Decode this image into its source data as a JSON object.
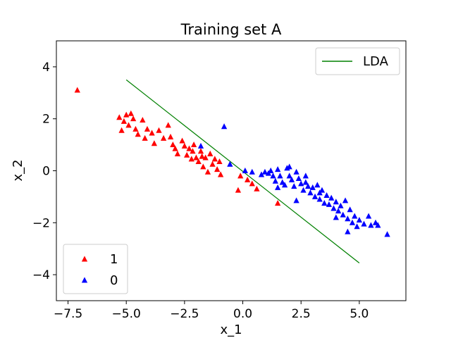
{
  "chart_data": {
    "type": "scatter",
    "title": "Training set A",
    "xlabel": "x_1",
    "ylabel": "x_2",
    "xlim": [
      -8.0,
      7.0
    ],
    "ylim": [
      -5.0,
      5.0
    ],
    "xticks": [
      -7.5,
      -5.0,
      -2.5,
      0.0,
      2.5,
      5.0
    ],
    "xtick_labels": [
      "−7.5",
      "−5.0",
      "−2.5",
      "0.0",
      "2.5",
      "5.0"
    ],
    "yticks": [
      -4,
      -2,
      0,
      2,
      4
    ],
    "ytick_labels": [
      "−4",
      "−2",
      "0",
      "2",
      "4"
    ],
    "grid": false,
    "series": [
      {
        "name": "1",
        "marker": "triangle",
        "color": "#ff0000",
        "points": [
          [
            -7.1,
            3.1
          ],
          [
            -5.3,
            2.05
          ],
          [
            -5.0,
            2.15
          ],
          [
            -4.8,
            2.2
          ],
          [
            -4.7,
            2.0
          ],
          [
            -5.1,
            1.9
          ],
          [
            -4.9,
            1.75
          ],
          [
            -5.2,
            1.55
          ],
          [
            -4.6,
            1.6
          ],
          [
            -4.5,
            1.4
          ],
          [
            -4.3,
            1.95
          ],
          [
            -4.1,
            1.6
          ],
          [
            -4.2,
            1.25
          ],
          [
            -3.9,
            1.45
          ],
          [
            -3.8,
            1.05
          ],
          [
            -3.6,
            1.55
          ],
          [
            -3.4,
            1.25
          ],
          [
            -3.2,
            1.75
          ],
          [
            -3.1,
            1.3
          ],
          [
            -3.0,
            1.0
          ],
          [
            -2.9,
            0.85
          ],
          [
            -2.8,
            0.65
          ],
          [
            -2.6,
            1.15
          ],
          [
            -2.5,
            0.95
          ],
          [
            -2.4,
            0.6
          ],
          [
            -2.3,
            0.85
          ],
          [
            -2.2,
            0.45
          ],
          [
            -2.1,
            1.0
          ],
          [
            -2.0,
            0.5
          ],
          [
            -2.15,
            0.75
          ],
          [
            -1.9,
            0.35
          ],
          [
            -1.8,
            0.75
          ],
          [
            -1.75,
            0.55
          ],
          [
            -1.7,
            0.15
          ],
          [
            -1.6,
            0.5
          ],
          [
            -1.5,
            -0.05
          ],
          [
            -1.4,
            0.65
          ],
          [
            -1.3,
            0.25
          ],
          [
            -1.2,
            0.45
          ],
          [
            -1.1,
            0.05
          ],
          [
            -1.0,
            0.35
          ],
          [
            -0.95,
            -0.15
          ],
          [
            -0.2,
            -0.75
          ],
          [
            -0.1,
            -0.2
          ],
          [
            0.2,
            -0.35
          ],
          [
            0.4,
            -0.5
          ],
          [
            0.6,
            -0.7
          ],
          [
            1.5,
            -1.25
          ]
        ]
      },
      {
        "name": "0",
        "marker": "triangle",
        "color": "#0000ff",
        "points": [
          [
            -1.8,
            0.95
          ],
          [
            -0.8,
            1.7
          ],
          [
            -0.55,
            0.25
          ],
          [
            0.1,
            0.0
          ],
          [
            0.4,
            -0.05
          ],
          [
            0.8,
            -0.15
          ],
          [
            0.95,
            -0.05
          ],
          [
            1.1,
            -0.1
          ],
          [
            1.2,
            0.0
          ],
          [
            1.3,
            -0.2
          ],
          [
            1.4,
            -0.4
          ],
          [
            1.5,
            0.05
          ],
          [
            1.6,
            -0.2
          ],
          [
            1.7,
            -0.45
          ],
          [
            1.8,
            -0.55
          ],
          [
            1.9,
            0.1
          ],
          [
            2.0,
            -0.2
          ],
          [
            2.1,
            -0.35
          ],
          [
            2.2,
            -0.6
          ],
          [
            2.3,
            -0.05
          ],
          [
            2.4,
            -0.3
          ],
          [
            2.5,
            -0.5
          ],
          [
            2.6,
            -0.75
          ],
          [
            2.7,
            -0.45
          ],
          [
            2.8,
            -0.6
          ],
          [
            2.9,
            -0.85
          ],
          [
            3.0,
            -0.65
          ],
          [
            3.1,
            -1.0
          ],
          [
            3.2,
            -0.55
          ],
          [
            3.3,
            -1.1
          ],
          [
            3.4,
            -0.75
          ],
          [
            3.5,
            -1.25
          ],
          [
            3.6,
            -0.95
          ],
          [
            3.7,
            -1.3
          ],
          [
            3.8,
            -1.05
          ],
          [
            3.9,
            -1.45
          ],
          [
            4.0,
            -1.2
          ],
          [
            4.1,
            -1.55
          ],
          [
            4.2,
            -1.35
          ],
          [
            4.3,
            -1.7
          ],
          [
            4.4,
            -1.15
          ],
          [
            4.5,
            -1.85
          ],
          [
            4.6,
            -1.5
          ],
          [
            4.7,
            -2.0
          ],
          [
            4.8,
            -1.75
          ],
          [
            4.9,
            -2.15
          ],
          [
            5.0,
            -1.9
          ],
          [
            5.2,
            -2.05
          ],
          [
            5.4,
            -1.75
          ],
          [
            5.5,
            -2.1
          ],
          [
            5.7,
            -2.0
          ],
          [
            5.8,
            -2.1
          ],
          [
            6.2,
            -2.45
          ],
          [
            4.5,
            -2.35
          ],
          [
            2.3,
            -1.15
          ],
          [
            1.5,
            -0.65
          ],
          [
            2.0,
            0.15
          ],
          [
            2.7,
            -0.2
          ],
          [
            3.3,
            -0.85
          ],
          [
            4.0,
            -1.8
          ]
        ]
      }
    ],
    "lines": [
      {
        "name": "LDA",
        "color": "#008000",
        "x": [
          -5.0,
          5.0
        ],
        "y": [
          3.5,
          -3.55
        ]
      }
    ],
    "legends": [
      {
        "position": "upper right",
        "entries": [
          "LDA"
        ]
      },
      {
        "position": "lower left",
        "entries": [
          "1",
          "0"
        ]
      }
    ]
  }
}
